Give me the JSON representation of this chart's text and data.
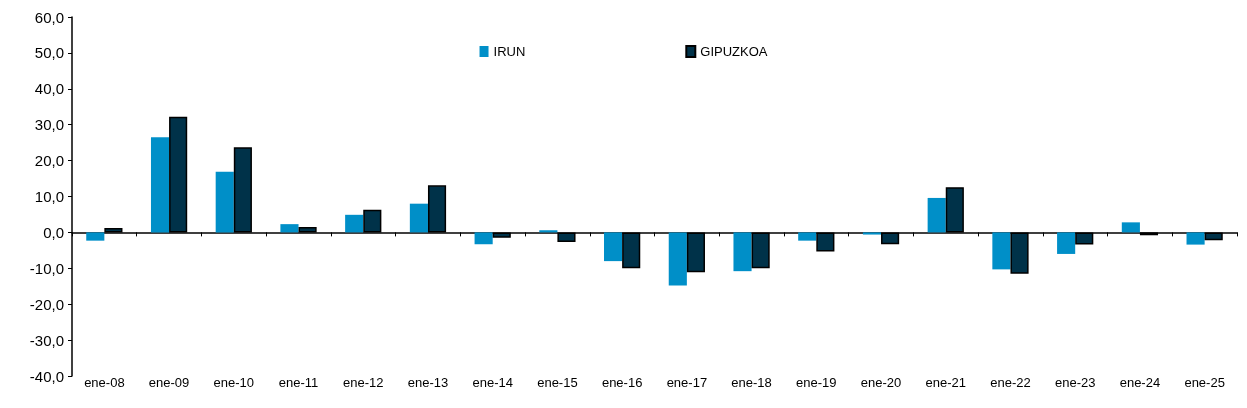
{
  "chart_data": {
    "type": "bar",
    "categories": [
      "ene-08",
      "ene-09",
      "ene-10",
      "ene-11",
      "ene-12",
      "ene-13",
      "ene-14",
      "ene-15",
      "ene-16",
      "ene-17",
      "ene-18",
      "ene-19",
      "ene-20",
      "ene-21",
      "ene-22",
      "ene-23",
      "ene-24",
      "ene-25"
    ],
    "series": [
      {
        "name": "IRUN",
        "color": "#008fc8",
        "values": [
          -2.3,
          26.5,
          16.9,
          2.3,
          4.9,
          8.0,
          -3.3,
          0.6,
          -8.0,
          -14.8,
          -10.8,
          -2.3,
          -0.6,
          9.6,
          -10.3,
          -6.0,
          2.8,
          -3.4
        ]
      },
      {
        "name": "GIPUZKOA",
        "color": "#003249",
        "values": [
          1.2,
          32.2,
          23.7,
          1.5,
          6.3,
          13.1,
          -1.5,
          -2.7,
          -10.0,
          -11.1,
          -10.0,
          -5.3,
          -3.3,
          12.6,
          -11.5,
          -3.4,
          -0.8,
          -2.2
        ]
      }
    ],
    "ylim": [
      -40,
      60
    ],
    "yticks": [
      {
        "value": -40,
        "label": "-40,0"
      },
      {
        "value": -30,
        "label": "-30,0"
      },
      {
        "value": -20,
        "label": "-20,0"
      },
      {
        "value": -10,
        "label": "-10,0"
      },
      {
        "value": 0,
        "label": "0,0"
      },
      {
        "value": 10,
        "label": "10,0"
      },
      {
        "value": 20,
        "label": "20,0"
      },
      {
        "value": 30,
        "label": "30,0"
      },
      {
        "value": 40,
        "label": "40,0"
      },
      {
        "value": 50,
        "label": "50,0"
      },
      {
        "value": 60,
        "label": "60,0"
      }
    ],
    "legend": "top"
  }
}
